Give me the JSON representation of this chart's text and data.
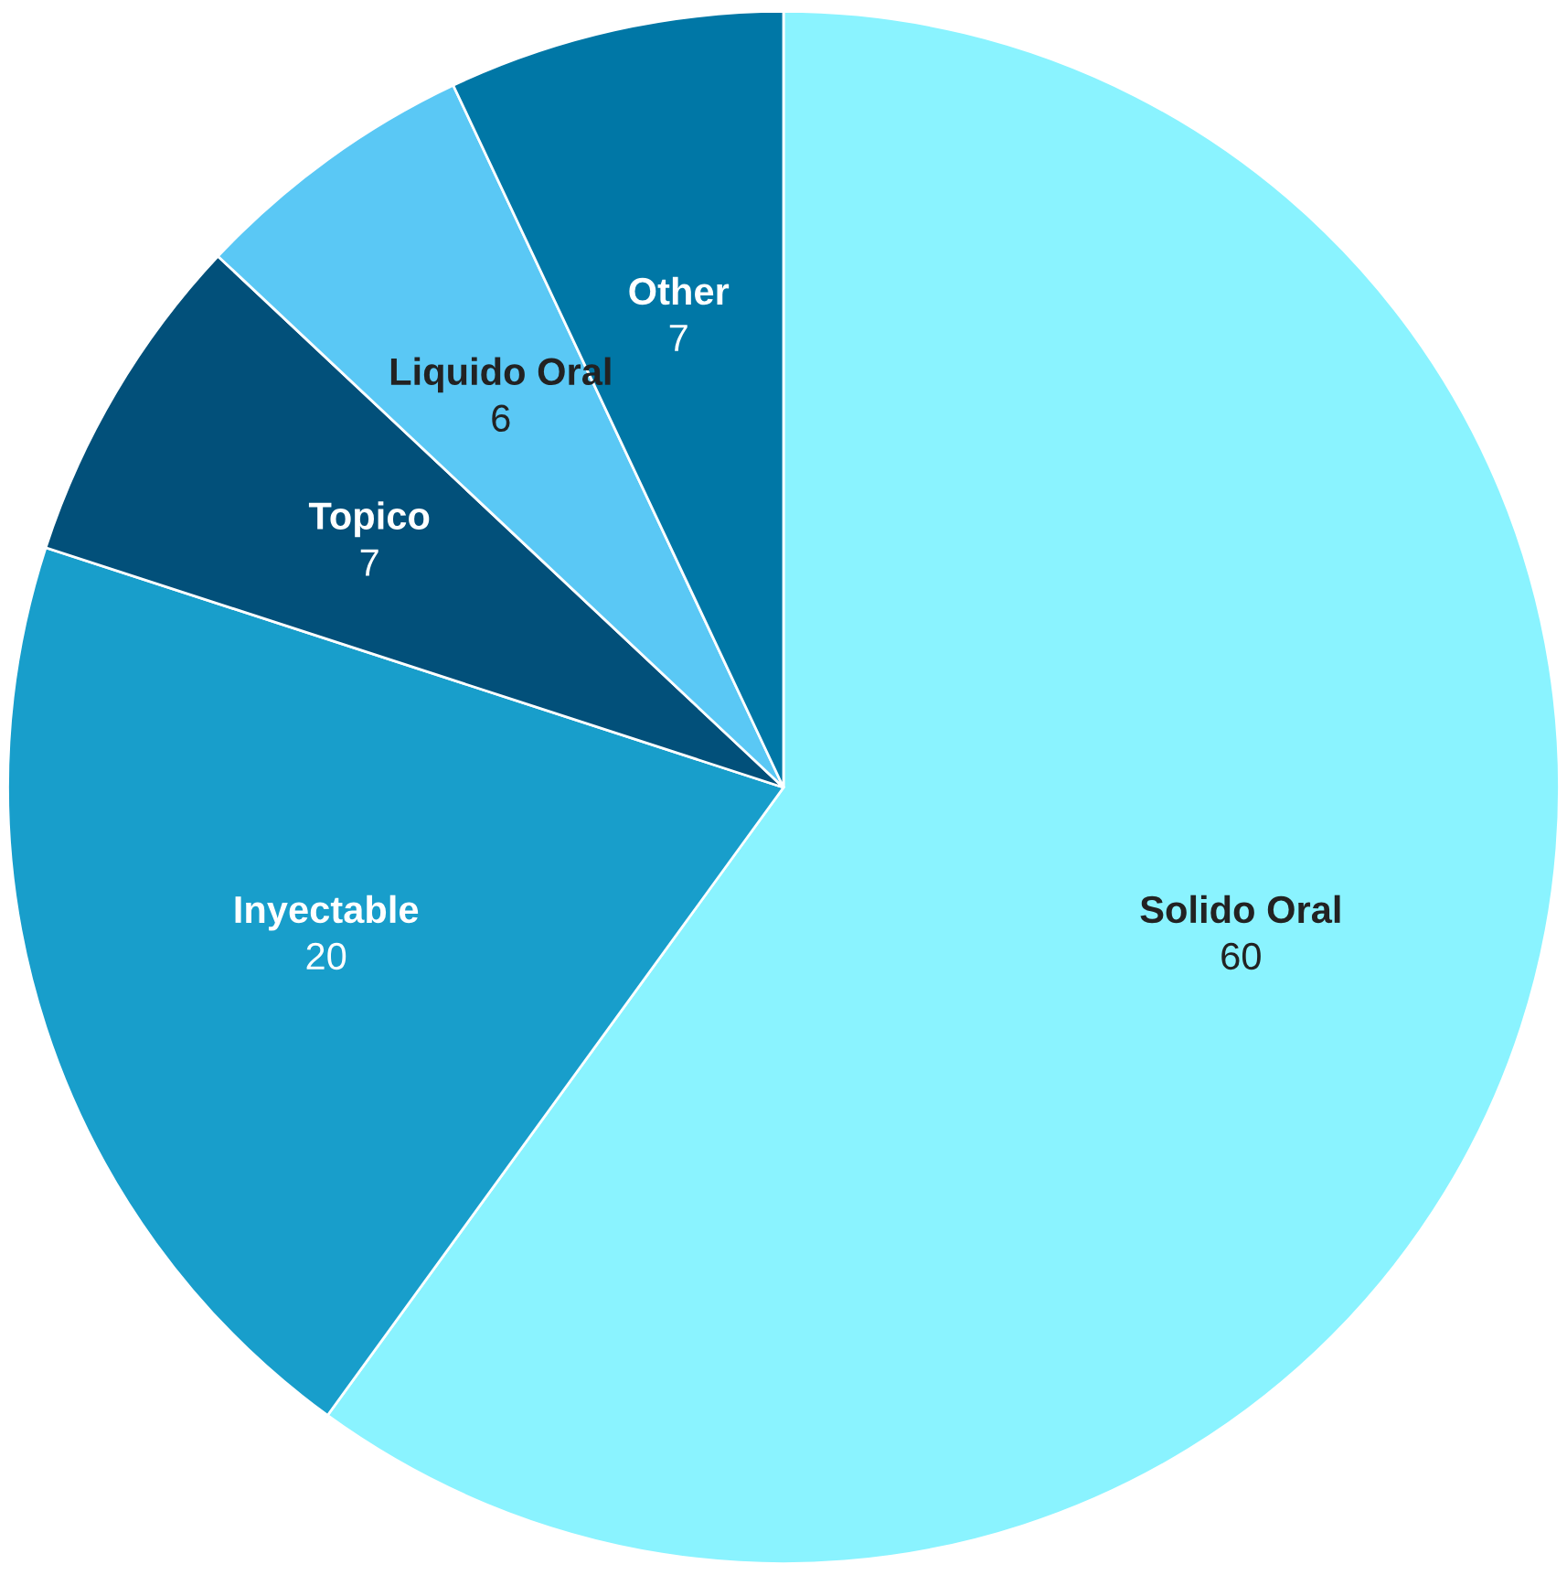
{
  "chart_data": {
    "type": "pie",
    "categories": [
      "Solido Oral",
      "Inyectable",
      "Topico",
      "Liquido Oral",
      "Other"
    ],
    "values": [
      60,
      20,
      7,
      6,
      7
    ],
    "colors": [
      "#8af3ff",
      "#189ecb",
      "#02507a",
      "#5ac8f5",
      "#0077a6"
    ],
    "data_labels": true,
    "legend": false
  }
}
